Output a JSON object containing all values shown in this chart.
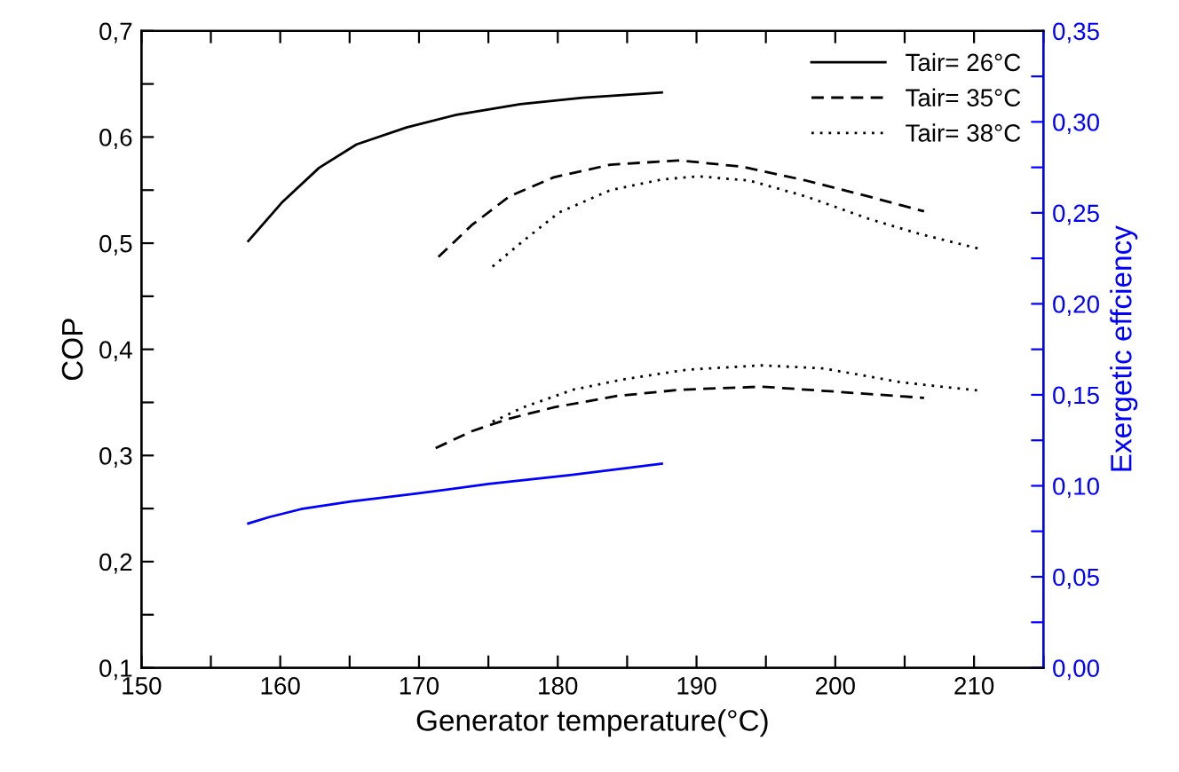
{
  "chart_data": {
    "type": "line",
    "xlabel": "Generator temperature(°C)",
    "ylabel": "COP",
    "y2label": "Exergetic effciency",
    "xlim": [
      150,
      215
    ],
    "xticks": [
      150,
      {
        "value": 155,
        "label": null
      },
      160,
      {
        "value": 165,
        "label": null
      },
      170,
      {
        "value": 175,
        "label": null
      },
      180,
      {
        "value": 185,
        "label": null
      },
      190,
      {
        "value": 195,
        "label": null
      },
      200,
      {
        "value": 205,
        "label": null
      },
      210,
      {
        "value": 215,
        "label": null
      }
    ],
    "ylim": [
      0.1,
      0.7
    ],
    "yticks": [
      {
        "value": 0.1,
        "label": "0,1"
      },
      {
        "value": 0.15,
        "label": null
      },
      {
        "value": 0.2,
        "label": "0,2"
      },
      {
        "value": 0.25,
        "label": null
      },
      {
        "value": 0.3,
        "label": "0,3"
      },
      {
        "value": 0.35,
        "label": null
      },
      {
        "value": 0.4,
        "label": "0,4"
      },
      {
        "value": 0.45,
        "label": null
      },
      {
        "value": 0.5,
        "label": "0,5"
      },
      {
        "value": 0.55,
        "label": null
      },
      {
        "value": 0.6,
        "label": "0,6"
      },
      {
        "value": 0.65,
        "label": null
      },
      {
        "value": 0.7,
        "label": "0,7"
      }
    ],
    "y2lim": [
      0,
      0.35
    ],
    "y2ticks": [
      {
        "value": 0,
        "label": "0,00"
      },
      {
        "value": 0.025,
        "label": null
      },
      {
        "value": 0.05,
        "label": "0,05"
      },
      {
        "value": 0.075,
        "label": null
      },
      {
        "value": 0.1,
        "label": "0,10"
      },
      {
        "value": 0.125,
        "label": null
      },
      {
        "value": 0.15,
        "label": "0,15"
      },
      {
        "value": 0.175,
        "label": null
      },
      {
        "value": 0.2,
        "label": "0,20"
      },
      {
        "value": 0.225,
        "label": null
      },
      {
        "value": 0.25,
        "label": "0,25"
      },
      {
        "value": 0.275,
        "label": null
      },
      {
        "value": 0.3,
        "label": "0,30"
      },
      {
        "value": 0.325,
        "label": null
      },
      {
        "value": 0.35,
        "label": "0,35"
      }
    ],
    "grid": false,
    "legend": "top right",
    "marker": "none",
    "series": [
      {
        "name": "Tair= 26°C",
        "color": "#000000",
        "line_style": "solid",
        "x": [
          157.7,
          160.1,
          162.8,
          165.5,
          169.1,
          172.7,
          177.3,
          181.8,
          187.5
        ],
        "values": [
          0.502,
          0.538,
          0.571,
          0.593,
          0.609,
          0.621,
          0.631,
          0.637,
          0.642
        ]
      },
      {
        "name": "Tair= 35°C",
        "color": "#000000",
        "line_style": "dashed",
        "x": [
          171.4,
          173.8,
          176.5,
          179.7,
          183.8,
          188.8,
          193.3,
          197.9,
          202.4,
          206.4
        ],
        "values": [
          0.487,
          0.517,
          0.544,
          0.562,
          0.574,
          0.578,
          0.572,
          0.559,
          0.544,
          0.53
        ]
      },
      {
        "name": "Tair= 38°C",
        "color": "#000000",
        "line_style": "dotted",
        "x": [
          175.3,
          177.5,
          180.1,
          183.8,
          187.5,
          190.1,
          193.8,
          197.9,
          202.4,
          206.0,
          210.3
        ],
        "values": [
          0.478,
          0.502,
          0.529,
          0.55,
          0.56,
          0.563,
          0.559,
          0.544,
          0.523,
          0.509,
          0.495
        ]
      },
      {
        "color": "#0000ff",
        "line_style": "solid",
        "axis": "y2",
        "x": [
          157.7,
          159.2,
          161.5,
          165.1,
          169.6,
          175.0,
          180.9,
          187.5
        ],
        "values": [
          0.0793,
          0.0828,
          0.0872,
          0.0914,
          0.0955,
          0.101,
          0.1059,
          0.1121
        ]
      },
      {
        "color": "#000000",
        "line_style": "dashed",
        "axis": "y2",
        "x": [
          171.2,
          173.8,
          176.5,
          179.7,
          184.2,
          188.8,
          194.7,
          200.1,
          206.4
        ],
        "values": [
          0.1207,
          0.13,
          0.1369,
          0.1431,
          0.1493,
          0.1528,
          0.1545,
          0.1517,
          0.1483
        ]
      },
      {
        "color": "#000000",
        "line_style": "dotted",
        "axis": "y2",
        "x": [
          175.3,
          177.5,
          181.1,
          184.8,
          189.3,
          194.7,
          199.2,
          204.7,
          210.3
        ],
        "values": [
          0.1352,
          0.1431,
          0.1528,
          0.1586,
          0.1638,
          0.1662,
          0.1645,
          0.1569,
          0.1524
        ]
      }
    ]
  }
}
